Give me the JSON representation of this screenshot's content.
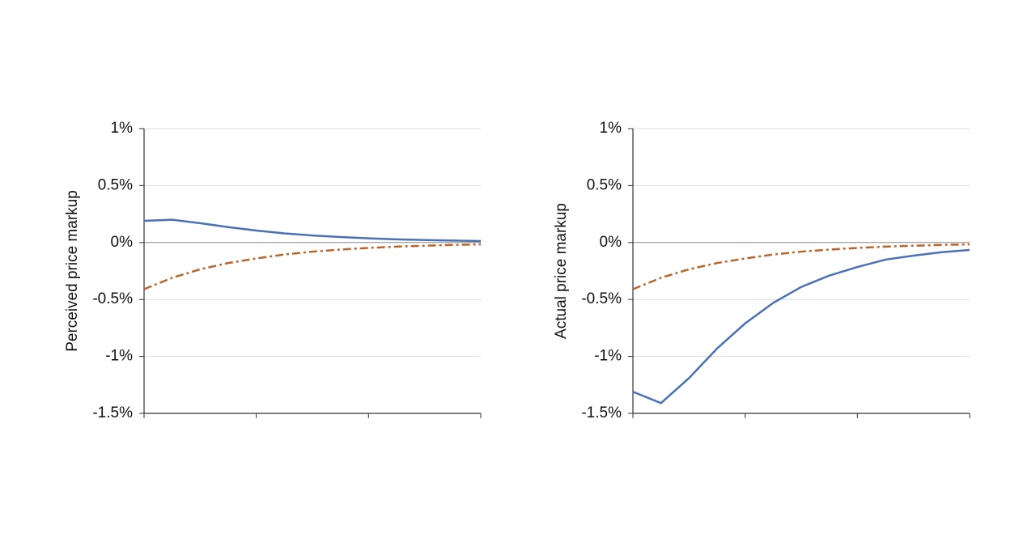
{
  "chart_data": [
    {
      "type": "line",
      "y_label": "Perceived price markup",
      "x": [
        0,
        1,
        2,
        3,
        4,
        5,
        6,
        7,
        8,
        9,
        10,
        11,
        12
      ],
      "xlim": [
        0,
        12
      ],
      "xticks": [
        0,
        4,
        8,
        12
      ],
      "ylim": [
        -1.5,
        1
      ],
      "yticks": [
        {
          "value": -1.5,
          "label": "-1.5%"
        },
        {
          "value": -1,
          "label": "-1%"
        },
        {
          "value": -0.5,
          "label": "-0.5%"
        },
        {
          "value": 0,
          "label": "0%"
        },
        {
          "value": 0.5,
          "label": "0.5%"
        },
        {
          "value": 1,
          "label": "1%"
        }
      ],
      "grid": true,
      "series": [
        {
          "color": "#4a70b5",
          "dash": "solid",
          "values": [
            0.19,
            0.2,
            0.17,
            0.135,
            0.105,
            0.08,
            0.062,
            0.048,
            0.037,
            0.028,
            0.022,
            0.017,
            0.013
          ]
        },
        {
          "color": "#b9652c",
          "dash": "dashdot",
          "values": [
            -0.41,
            -0.31,
            -0.235,
            -0.18,
            -0.14,
            -0.105,
            -0.08,
            -0.062,
            -0.047,
            -0.036,
            -0.028,
            -0.021,
            -0.016
          ]
        }
      ]
    },
    {
      "type": "line",
      "y_label": "Actual price markup",
      "x": [
        0,
        1,
        2,
        3,
        4,
        5,
        6,
        7,
        8,
        9,
        10,
        11,
        12
      ],
      "xlim": [
        0,
        12
      ],
      "xticks": [
        0,
        4,
        8,
        12
      ],
      "ylim": [
        -1.5,
        1
      ],
      "yticks": [
        {
          "value": -1.5,
          "label": "-1.5%"
        },
        {
          "value": -1,
          "label": "-1%"
        },
        {
          "value": -0.5,
          "label": "-0.5%"
        },
        {
          "value": 0,
          "label": "0%"
        },
        {
          "value": 0.5,
          "label": "0.5%"
        },
        {
          "value": 1,
          "label": "1%"
        }
      ],
      "grid": true,
      "series": [
        {
          "color": "#4a70b5",
          "dash": "solid",
          "values": [
            -1.31,
            -1.41,
            -1.19,
            -0.93,
            -0.71,
            -0.53,
            -0.39,
            -0.29,
            -0.215,
            -0.15,
            -0.115,
            -0.085,
            -0.065
          ]
        },
        {
          "color": "#b9652c",
          "dash": "dashdot",
          "values": [
            -0.41,
            -0.31,
            -0.235,
            -0.18,
            -0.14,
            -0.105,
            -0.08,
            -0.062,
            -0.047,
            -0.036,
            -0.028,
            -0.021,
            -0.016
          ]
        }
      ]
    }
  ]
}
